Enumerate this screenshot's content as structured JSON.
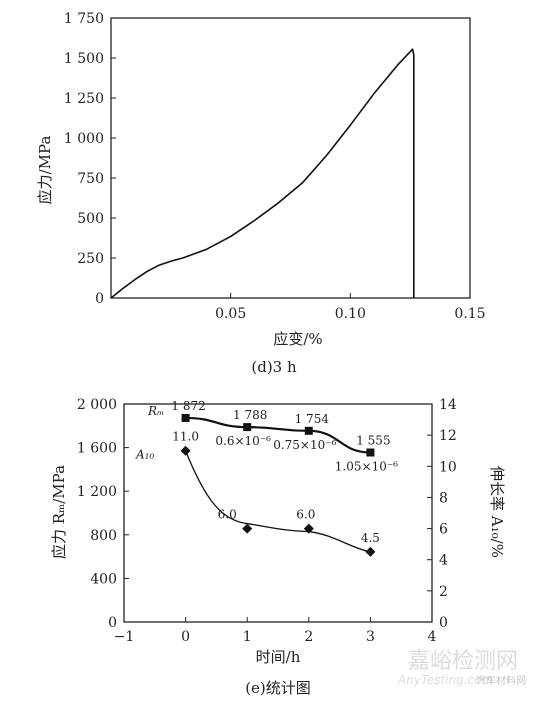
{
  "chart_data": [
    {
      "type": "line",
      "caption": "(d)3 h",
      "xlabel": "应变/%",
      "ylabel": "应力/MPa",
      "xlim": [
        0,
        0.15
      ],
      "ylim": [
        0,
        1750
      ],
      "x_ticks": [
        0.05,
        0.1,
        0.15
      ],
      "x_tick_labels": [
        "0.05",
        "0.10",
        "0.15"
      ],
      "y_ticks": [
        0,
        250,
        500,
        750,
        1000,
        1250,
        1500,
        1750
      ],
      "y_tick_labels": [
        "0",
        "250",
        "500",
        "750",
        "1 000",
        "1 250",
        "1 500",
        "1 750"
      ],
      "grid": false,
      "series": [
        {
          "x": [
            0,
            0.005,
            0.01,
            0.015,
            0.02,
            0.025,
            0.03,
            0.04,
            0.05,
            0.06,
            0.07,
            0.08,
            0.09,
            0.1,
            0.11,
            0.12,
            0.126,
            0.1265,
            0.1265
          ],
          "y": [
            0,
            60,
            115,
            165,
            205,
            230,
            250,
            305,
            385,
            485,
            595,
            720,
            890,
            1080,
            1280,
            1460,
            1555,
            1520,
            0
          ]
        }
      ]
    },
    {
      "type": "scatter",
      "caption": "(e)统计图",
      "xlabel": "时间/h",
      "ylabel": "应力 Rₘ/MPa",
      "ylabel_right": "伸长率 A₁₀/%",
      "xlim": [
        -1,
        4
      ],
      "ylim": [
        0,
        2000
      ],
      "ylim_right": [
        0,
        14
      ],
      "x_ticks": [
        -1,
        0,
        1,
        2,
        3,
        4
      ],
      "x_tick_labels": [
        "−1",
        "0",
        "1",
        "2",
        "3",
        "4"
      ],
      "y_ticks": [
        0,
        400,
        800,
        1200,
        1600,
        2000
      ],
      "y_tick_labels": [
        "0",
        "400",
        "800",
        "1 200",
        "1 600",
        "2 000"
      ],
      "y_ticks_right": [
        0,
        2,
        4,
        6,
        8,
        10,
        12,
        14
      ],
      "y_tick_labels_right": [
        "0",
        "2",
        "4",
        "6",
        "8",
        "10",
        "12",
        "14"
      ],
      "grid": false,
      "series": [
        {
          "name": "Rₘ",
          "axis": "left",
          "marker": "square",
          "x": [
            0,
            1,
            2,
            3
          ],
          "y": [
            1872,
            1788,
            1754,
            1555
          ],
          "value_labels": [
            "1 872",
            "1 788",
            "1 754",
            "1 555"
          ],
          "annotations": [
            "",
            "0.6×10⁻⁶",
            "0.75×10⁻⁶",
            "1.05×10⁻⁶"
          ]
        },
        {
          "name": "A₁₀",
          "axis": "right",
          "marker": "diamond",
          "x": [
            0,
            1,
            2,
            3
          ],
          "y": [
            11.0,
            6.0,
            6.0,
            4.5
          ],
          "value_labels": [
            "11.0",
            "6.0",
            "6.0",
            "4.5"
          ]
        }
      ]
    }
  ],
  "watermark": {
    "line1": "嘉峪检测网",
    "line2": "AnyTesting.com",
    "line3": "汽车材料网"
  }
}
